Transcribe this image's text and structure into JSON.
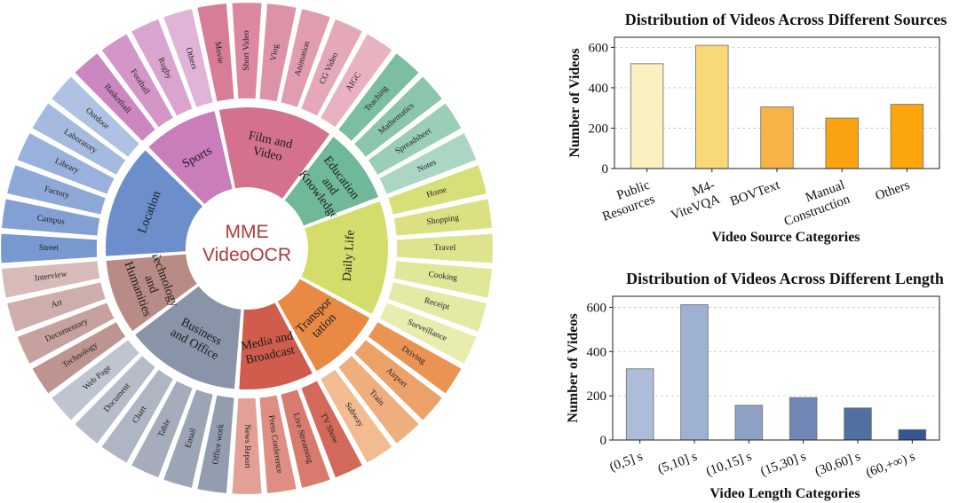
{
  "chart_data": [
    {
      "type": "sunburst",
      "center_label": [
        "MME",
        "VideoOCR"
      ],
      "center_color": "#b03a3a",
      "categories": [
        {
          "name": "Sports",
          "label": [
            "Sports"
          ],
          "color": "#c97dba",
          "children": [
            "Basketball",
            "Football",
            "Rugby",
            "Others"
          ]
        },
        {
          "name": "Film and Video",
          "label": [
            "Film and",
            "Video"
          ],
          "color": "#d4728e",
          "children": [
            "Movie",
            "Short Video",
            "Vlog",
            "Animation",
            "CG Video",
            "AIGC"
          ]
        },
        {
          "name": "Education and Knowledge",
          "label": [
            "Education",
            "and",
            "Knowledge"
          ],
          "color": "#6fb898",
          "children": [
            "Teaching",
            "Mathematics",
            "Spreadsheet",
            "Notes"
          ]
        },
        {
          "name": "Daily Life",
          "label": [
            "Daily Life"
          ],
          "color": "#d4dc6c",
          "children": [
            "Home",
            "Shopping",
            "Travel",
            "Cooking",
            "Receipt",
            "Surveillance"
          ]
        },
        {
          "name": "Transportation",
          "label": [
            "Transpor",
            "tation"
          ],
          "color": "#e88a44",
          "children": [
            "Driving",
            "Airport",
            "Train",
            "Subway"
          ]
        },
        {
          "name": "Media and Broadcast",
          "label": [
            "Media and",
            "Broadcast"
          ],
          "color": "#cf5c4c",
          "children": [
            "TV Show",
            "Live Streaming",
            "Press Conference",
            "News Report"
          ]
        },
        {
          "name": "Business and Office",
          "label": [
            "Business",
            "and Office"
          ],
          "color": "#8a94a8",
          "children": [
            "Office work",
            "Email",
            "Table",
            "Chart",
            "Document",
            "Web Page"
          ]
        },
        {
          "name": "Technology and Humanities",
          "label": [
            "Technology",
            "and",
            "Humanities"
          ],
          "color": "#b88b86",
          "children": [
            "Technology",
            "Documentary",
            "Art",
            "Interview"
          ]
        },
        {
          "name": "Location",
          "label": [
            "Location"
          ],
          "color": "#6c8fcc",
          "children": [
            "Street",
            "Campus",
            "Factory",
            "Library",
            "Laboratory",
            "Outdoor"
          ]
        }
      ]
    },
    {
      "type": "bar",
      "title": "Distribution of Videos Across Different Sources",
      "xlabel": "Video Source Categories",
      "ylabel": "Number of Videos",
      "categories": [
        [
          "Public",
          "Resources"
        ],
        [
          "M4-",
          "ViteVQA"
        ],
        [
          "BOVText"
        ],
        [
          "Manual",
          "Construction"
        ],
        [
          "Others"
        ]
      ],
      "values": [
        519,
        610,
        305,
        250,
        318
      ],
      "colors": [
        "#fbf0bf",
        "#f7d978",
        "#f8b348",
        "#f9a310",
        "#fca60c"
      ],
      "ylim": [
        0,
        650
      ],
      "yticks": [
        0,
        200,
        400,
        600
      ],
      "grid": true
    },
    {
      "type": "bar",
      "title": "Distribution of Videos Across Different Length",
      "xlabel": "Video Length Categories",
      "ylabel": "Number of Videos",
      "categories": [
        "(0,5] s",
        "(5,10] s",
        "(10,15] s",
        "(15,30] s",
        "(30,60] s",
        "(60,+∞) s"
      ],
      "values": [
        322,
        612,
        157,
        192,
        145,
        47
      ],
      "colors": [
        "#adbcd8",
        "#9fb1d3",
        "#8ea1c6",
        "#7087b5",
        "#52709f",
        "#35568f"
      ],
      "ylim": [
        0,
        650
      ],
      "yticks": [
        0,
        200,
        400,
        600
      ],
      "grid": true
    }
  ]
}
